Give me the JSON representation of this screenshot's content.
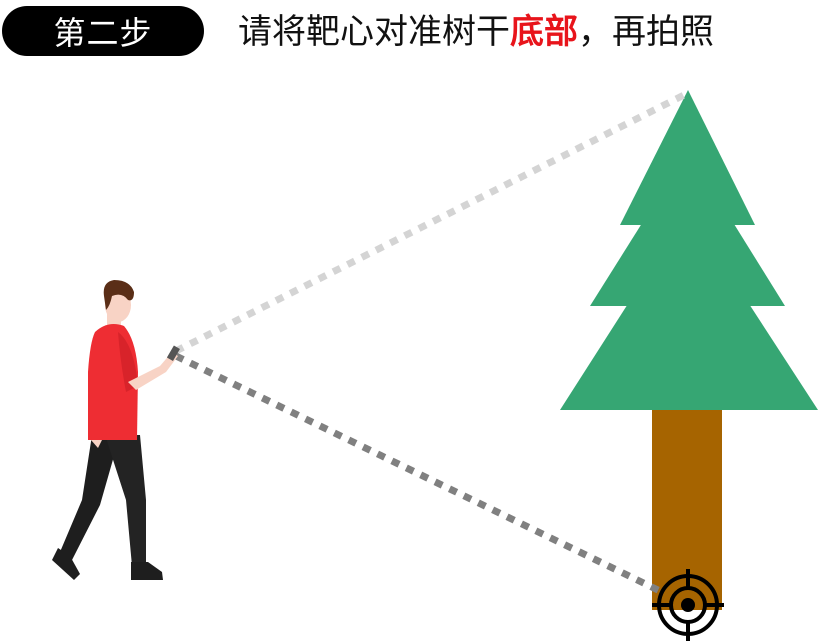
{
  "step_badge": {
    "label": "第二步",
    "background": "#000000",
    "text_color": "#ffffff"
  },
  "instruction": {
    "prefix": "请将靶心对准树干",
    "emphasis": "底部",
    "suffix": "，再拍照",
    "emphasis_color": "#e8141b"
  },
  "scene": {
    "tree_color": "#36a673",
    "trunk_color": "#a66400",
    "sight_line_top_color": "#d4d4d4",
    "sight_line_bottom_color": "#808080",
    "person_shirt_color": "#ee2d33",
    "person_pants_color": "#1e1e1e",
    "person_hair_color": "#5a2e17",
    "target_icon": "crosshair-target-icon"
  }
}
